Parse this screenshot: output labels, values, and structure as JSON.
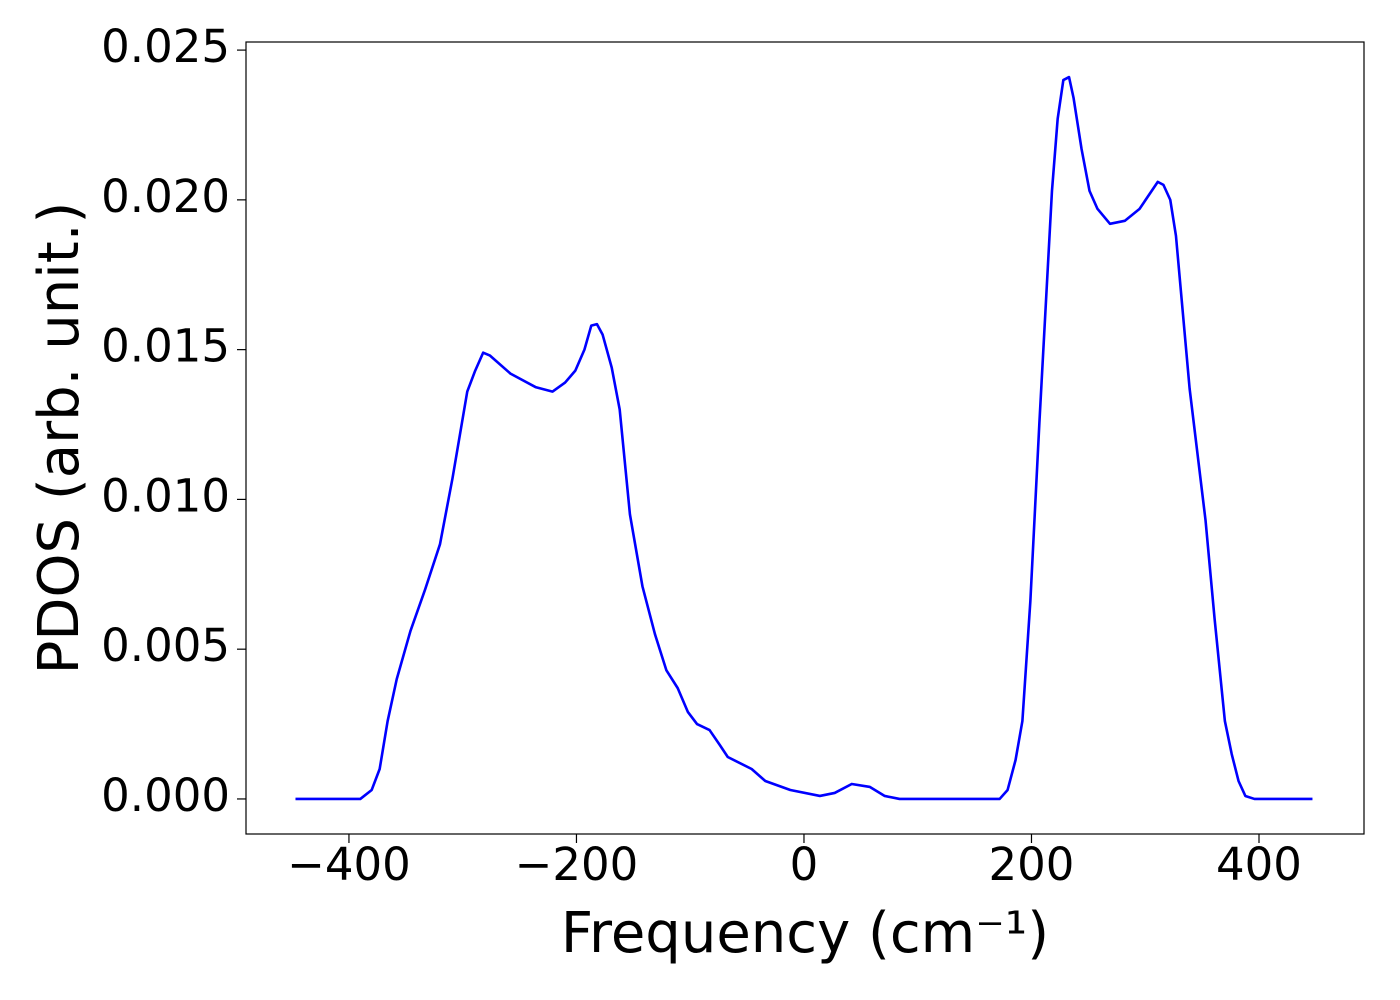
{
  "chart_data": {
    "type": "line",
    "xlabel": "Frequency (cm⁻¹)",
    "ylabel": "PDOS (arb. unit.)",
    "color": "#0000ff",
    "x": [
      -447,
      -390,
      -380,
      -373,
      -366,
      -358,
      -346,
      -333,
      -320,
      -309,
      -296,
      -289,
      -282,
      -276,
      -258,
      -236,
      -221,
      -210,
      -201,
      -193,
      -187,
      -182,
      -177,
      -169,
      -162,
      -153,
      -142,
      -131,
      -121,
      -111,
      -102,
      -94,
      -83,
      -74,
      -67,
      -46,
      -34,
      -12,
      14,
      27,
      42,
      58,
      71,
      84,
      172,
      179,
      186,
      192,
      199,
      207,
      218,
      223,
      228,
      233,
      237,
      244,
      251,
      258,
      269,
      282,
      295,
      311,
      316,
      322,
      327,
      339,
      353,
      361,
      370,
      376,
      382,
      388,
      396,
      447
    ],
    "values": [
      0,
      0,
      0.0003,
      0.001,
      0.0026,
      0.004,
      0.0056,
      0.007,
      0.0085,
      0.0107,
      0.0136,
      0.0143,
      0.0149,
      0.0148,
      0.0142,
      0.01375,
      0.0136,
      0.0139,
      0.0143,
      0.015,
      0.0158,
      0.01585,
      0.0155,
      0.0144,
      0.013,
      0.0095,
      0.0071,
      0.0055,
      0.0043,
      0.0037,
      0.0029,
      0.0025,
      0.0023,
      0.0018,
      0.0014,
      0.001,
      0.0006,
      0.0003,
      0.0001,
      0.0002,
      0.0005,
      0.0004,
      0.0001,
      0,
      0,
      0.0003,
      0.0013,
      0.0026,
      0.0066,
      0.0126,
      0.0203,
      0.0227,
      0.024,
      0.0241,
      0.0234,
      0.0217,
      0.0203,
      0.0197,
      0.0192,
      0.0193,
      0.0197,
      0.0206,
      0.0205,
      0.02,
      0.0188,
      0.0137,
      0.0093,
      0.006,
      0.0026,
      0.0015,
      0.0006,
      0.0001,
      0,
      0
    ],
    "xlim": [
      -490.5,
      492.3
    ],
    "ylim": [
      -0.00117,
      0.02527
    ],
    "xticks": [
      {
        "value": -400,
        "label": "−400"
      },
      {
        "value": -200,
        "label": "−200"
      },
      0,
      200,
      400
    ],
    "yticks": [
      {
        "value": 0,
        "label": "0.000"
      },
      {
        "value": 0.005,
        "label": "0.005"
      },
      {
        "value": 0.01,
        "label": "0.010"
      },
      {
        "value": 0.015,
        "label": "0.015"
      },
      {
        "value": 0.02,
        "label": "0.020"
      },
      {
        "value": 0.025,
        "label": "0.025"
      }
    ]
  }
}
